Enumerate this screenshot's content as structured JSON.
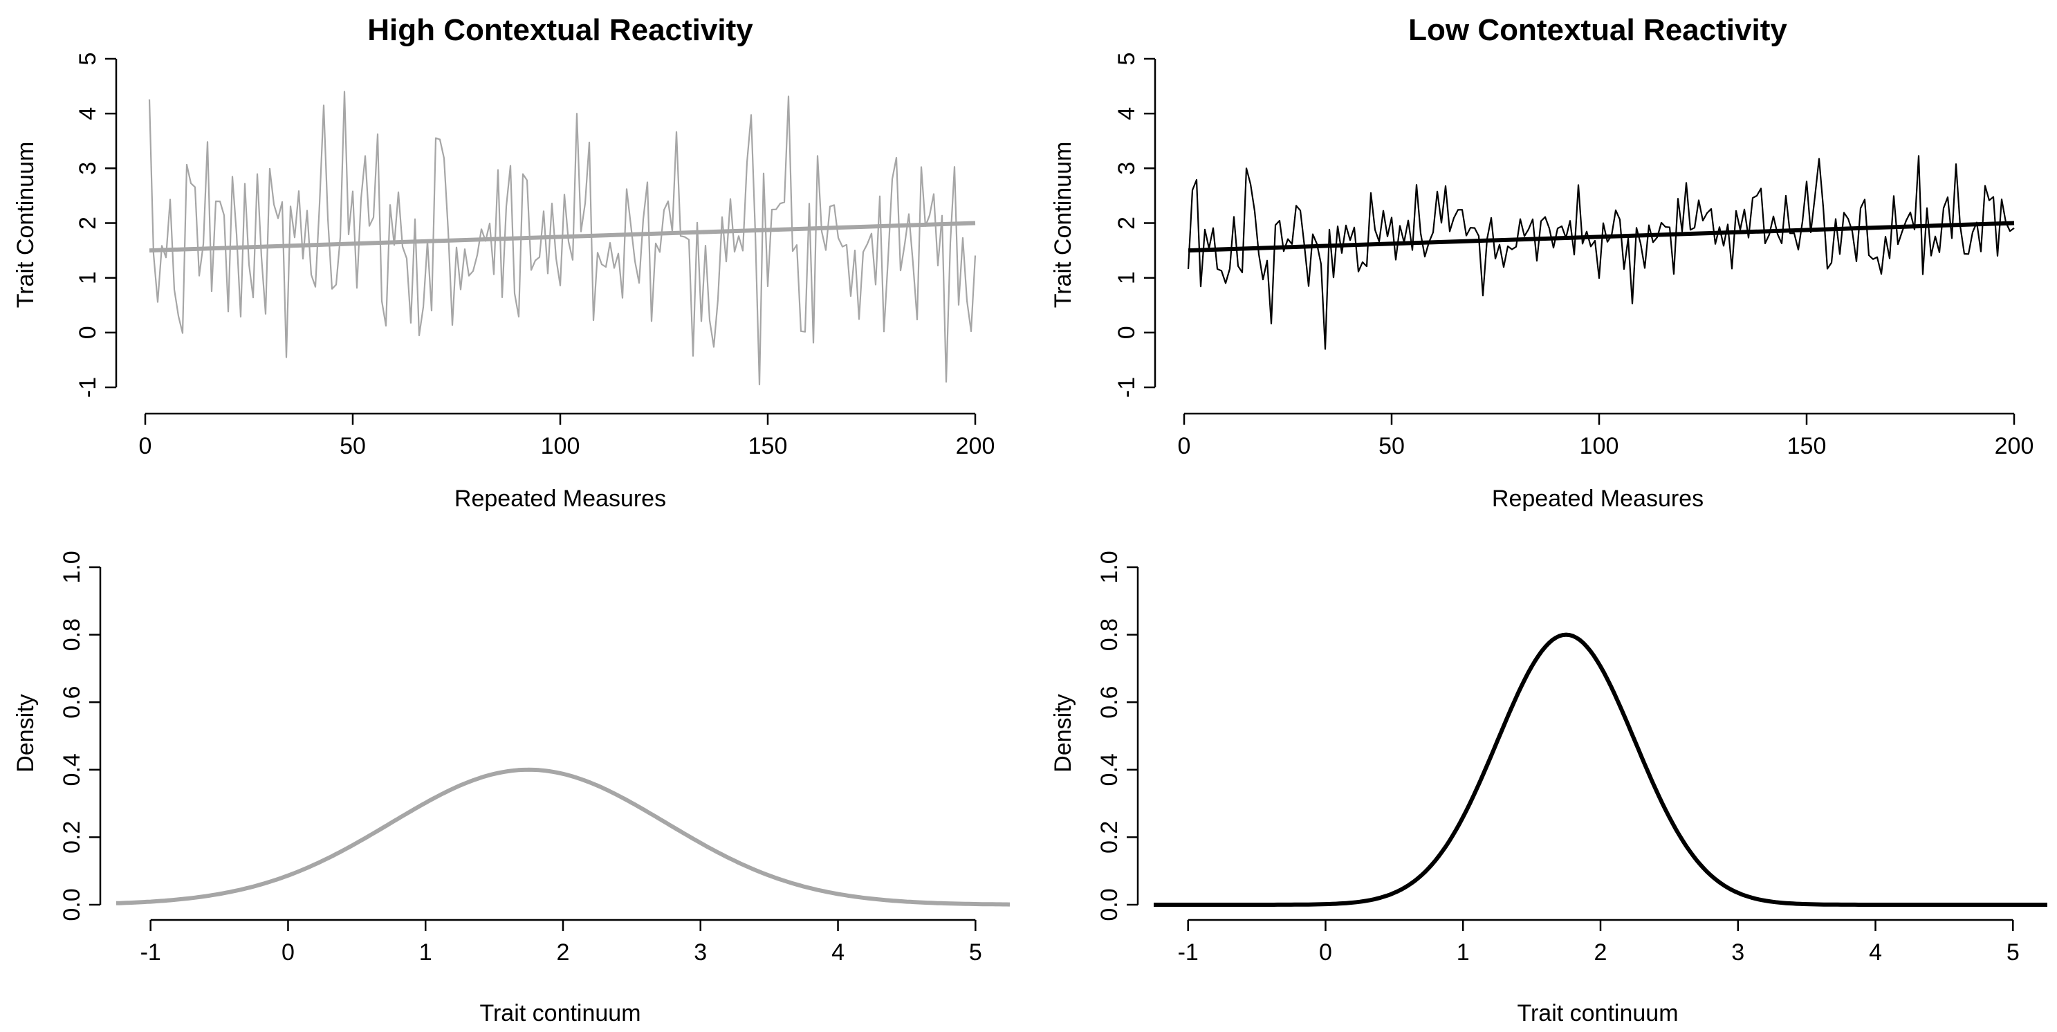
{
  "figure": {
    "panels": [
      {
        "title": "High Contextual Reactivity",
        "color": "#a6a6a6",
        "chart_data": {
          "type": "line",
          "title": "High Contextual Reactivity",
          "xlabel": "Repeated Measures",
          "ylabel": "Trait Continuum",
          "xlim": [
            0,
            200
          ],
          "ylim": [
            -1,
            5
          ],
          "xticks": [
            "0",
            "50",
            "100",
            "150",
            "200"
          ],
          "yticks": [
            "-1",
            "0",
            "1",
            "2",
            "3",
            "4",
            "5"
          ],
          "series": [
            {
              "kind": "observations",
              "x": [
                1,
                200
              ],
              "noise_sd": 1.0,
              "noise_seed": 7,
              "notable_points": [
                [
                  43,
                  4.15
                ],
                [
                  104,
                  4.0
                ],
                [
                  148,
                  -0.95
                ]
              ]
            },
            {
              "kind": "trend",
              "x": [
                1,
                200
              ],
              "y": [
                1.5,
                2.0
              ]
            }
          ]
        }
      },
      {
        "title": "Low Contextual Reactivity",
        "color": "#000000",
        "chart_data": {
          "type": "line",
          "title": "Low Contextual Reactivity",
          "xlabel": "Repeated Measures",
          "ylabel": "Trait Continuum",
          "xlim": [
            0,
            200
          ],
          "ylim": [
            -1,
            5
          ],
          "xticks": [
            "0",
            "50",
            "100",
            "150",
            "200"
          ],
          "yticks": [
            "-1",
            "0",
            "1",
            "2",
            "3",
            "4",
            "5"
          ],
          "series": [
            {
              "kind": "observations",
              "x": [
                1,
                200
              ],
              "noise_sd": 0.5,
              "noise_seed": 13,
              "notable_points": [
                [
                  15,
                  3.0
                ],
                [
                  34,
                  -0.3
                ]
              ]
            },
            {
              "kind": "trend",
              "x": [
                1,
                200
              ],
              "y": [
                1.5,
                2.0
              ]
            }
          ]
        }
      },
      {
        "title": "",
        "color": "#a6a6a6",
        "chart_data": {
          "type": "line",
          "xlabel": "Trait continuum",
          "ylabel": "Density",
          "xlim": [
            -1.25,
            5.25
          ],
          "ylim": [
            0,
            1
          ],
          "xticks": [
            "-1",
            "0",
            "1",
            "2",
            "3",
            "4",
            "5"
          ],
          "yticks": [
            "0.0",
            "0.2",
            "0.4",
            "0.6",
            "0.8",
            "1.0"
          ],
          "series": [
            {
              "kind": "density",
              "distribution": "normal",
              "mean": 1.75,
              "sd": 1.0,
              "peak": 0.4
            }
          ]
        }
      },
      {
        "title": "",
        "color": "#000000",
        "chart_data": {
          "type": "line",
          "xlabel": "Trait continuum",
          "ylabel": "Density",
          "xlim": [
            -1.25,
            5.25
          ],
          "ylim": [
            0,
            1
          ],
          "xticks": [
            "-1",
            "0",
            "1",
            "2",
            "3",
            "4",
            "5"
          ],
          "yticks": [
            "0.0",
            "0.2",
            "0.4",
            "0.6",
            "0.8",
            "1.0"
          ],
          "series": [
            {
              "kind": "density",
              "distribution": "normal",
              "mean": 1.75,
              "sd": 0.5,
              "peak": 0.8
            }
          ]
        }
      }
    ]
  }
}
